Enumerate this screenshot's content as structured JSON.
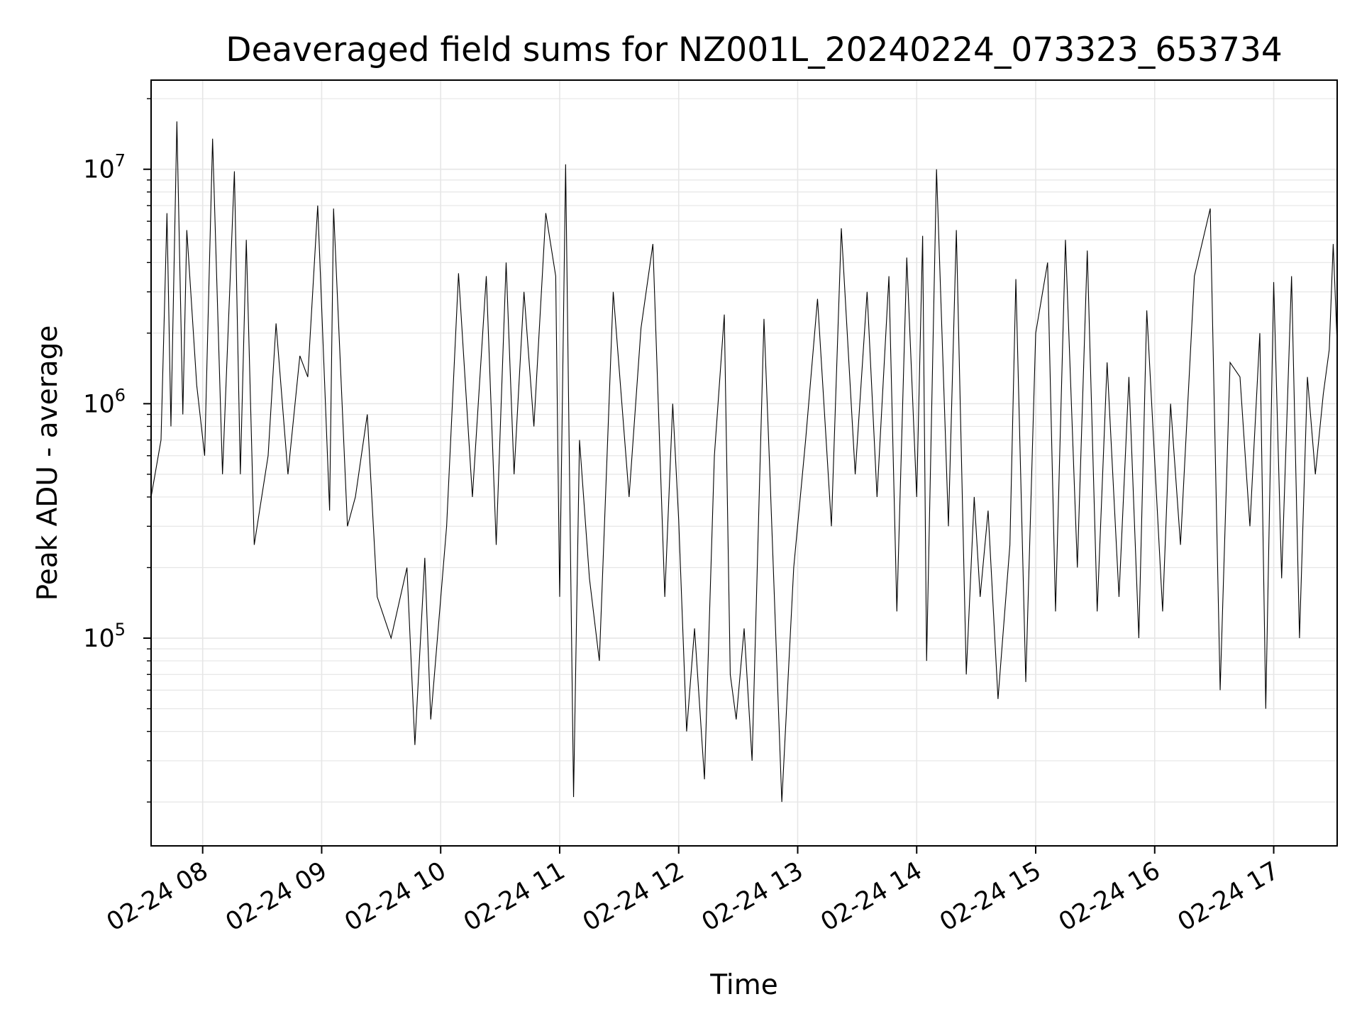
{
  "chart_data": {
    "type": "line",
    "title": "Deaveraged field sums for NZ001L_20240224_073323_653734",
    "xlabel": "Time",
    "ylabel": "Peak ADU - average",
    "yscale": "log",
    "ylim": [
      13000,
      24000000
    ],
    "xlim": [
      "2024-02-24 07:34",
      "2024-02-24 17:32"
    ],
    "grid": true,
    "x_tick_labels": [
      "02-24 08",
      "02-24 09",
      "02-24 10",
      "02-24 11",
      "02-24 12",
      "02-24 13",
      "02-24 14",
      "02-24 15",
      "02-24 16",
      "02-24 17"
    ],
    "y_tick_labels": [
      {
        "value": 100000,
        "base": "10",
        "exp": "5"
      },
      {
        "value": 1000000,
        "base": "10",
        "exp": "6"
      },
      {
        "value": 10000000,
        "base": "10",
        "exp": "7"
      }
    ],
    "line_color": "#000000",
    "grid_color": "#e6e6e6",
    "series": [
      {
        "x": [
          "2024-02-24 07:34",
          "2024-02-24 07:39",
          "2024-02-24 07:42",
          "2024-02-24 07:44",
          "2024-02-24 07:47",
          "2024-02-24 07:50",
          "2024-02-24 07:52",
          "2024-02-24 07:54",
          "2024-02-24 07:57",
          "2024-02-24 08:01",
          "2024-02-24 08:05",
          "2024-02-24 08:10",
          "2024-02-24 08:16",
          "2024-02-24 08:19",
          "2024-02-24 08:22",
          "2024-02-24 08:26",
          "2024-02-24 08:33",
          "2024-02-24 08:37",
          "2024-02-24 08:43",
          "2024-02-24 08:49",
          "2024-02-24 08:53",
          "2024-02-24 08:58",
          "2024-02-24 09:04",
          "2024-02-24 09:06",
          "2024-02-24 09:13",
          "2024-02-24 09:17",
          "2024-02-24 09:23",
          "2024-02-24 09:28",
          "2024-02-24 09:35",
          "2024-02-24 09:43",
          "2024-02-24 09:47",
          "2024-02-24 09:52",
          "2024-02-24 09:55",
          "2024-02-24 10:03",
          "2024-02-24 10:09",
          "2024-02-24 10:16",
          "2024-02-24 10:23",
          "2024-02-24 10:28",
          "2024-02-24 10:33",
          "2024-02-24 10:37",
          "2024-02-24 10:42",
          "2024-02-24 10:47",
          "2024-02-24 10:53",
          "2024-02-24 10:58",
          "2024-02-24 11:00",
          "2024-02-24 11:03",
          "2024-02-24 11:07",
          "2024-02-24 11:10",
          "2024-02-24 11:15",
          "2024-02-24 11:20",
          "2024-02-24 11:27",
          "2024-02-24 11:35",
          "2024-02-24 11:41",
          "2024-02-24 11:47",
          "2024-02-24 11:53",
          "2024-02-24 11:57",
          "2024-02-24 12:00",
          "2024-02-24 12:04",
          "2024-02-24 12:08",
          "2024-02-24 12:13",
          "2024-02-24 12:18",
          "2024-02-24 12:23",
          "2024-02-24 12:26",
          "2024-02-24 12:29",
          "2024-02-24 12:33",
          "2024-02-24 12:37",
          "2024-02-24 12:43",
          "2024-02-24 12:46",
          "2024-02-24 12:52",
          "2024-02-24 12:58",
          "2024-02-24 13:04",
          "2024-02-24 13:10",
          "2024-02-24 13:17",
          "2024-02-24 13:22",
          "2024-02-24 13:29",
          "2024-02-24 13:35",
          "2024-02-24 13:40",
          "2024-02-24 13:46",
          "2024-02-24 13:50",
          "2024-02-24 13:55",
          "2024-02-24 14:00",
          "2024-02-24 14:03",
          "2024-02-24 14:05",
          "2024-02-24 14:10",
          "2024-02-24 14:16",
          "2024-02-24 14:20",
          "2024-02-24 14:25",
          "2024-02-24 14:29",
          "2024-02-24 14:32",
          "2024-02-24 14:36",
          "2024-02-24 14:41",
          "2024-02-24 14:47",
          "2024-02-24 14:50",
          "2024-02-24 14:55",
          "2024-02-24 15:00",
          "2024-02-24 15:06",
          "2024-02-24 15:10",
          "2024-02-24 15:15",
          "2024-02-24 15:21",
          "2024-02-24 15:26",
          "2024-02-24 15:31",
          "2024-02-24 15:36",
          "2024-02-24 15:42",
          "2024-02-24 15:47",
          "2024-02-24 15:52",
          "2024-02-24 15:56",
          "2024-02-24 16:04",
          "2024-02-24 16:08",
          "2024-02-24 16:13",
          "2024-02-24 16:20",
          "2024-02-24 16:28",
          "2024-02-24 16:33",
          "2024-02-24 16:38",
          "2024-02-24 16:43",
          "2024-02-24 16:48",
          "2024-02-24 16:53",
          "2024-02-24 16:56",
          "2024-02-24 17:00",
          "2024-02-24 17:04",
          "2024-02-24 17:09",
          "2024-02-24 17:13",
          "2024-02-24 17:17",
          "2024-02-24 17:21",
          "2024-02-24 17:25",
          "2024-02-24 17:28",
          "2024-02-24 17:30",
          "2024-02-24 17:32"
        ],
        "values": [
          400000,
          700000,
          6500000,
          800000,
          16000000,
          900000,
          5500000,
          3000000,
          1200000,
          600000,
          13500000,
          500000,
          9800000,
          500000,
          5000000,
          250000,
          600000,
          2200000,
          500000,
          1600000,
          1300000,
          7000000,
          350000,
          6800000,
          300000,
          400000,
          900000,
          150000,
          100000,
          200000,
          35000,
          220000,
          45000,
          300000,
          3600000,
          400000,
          3500000,
          250000,
          4000000,
          500000,
          3000000,
          800000,
          6500000,
          3500000,
          150000,
          10500000,
          21000,
          700000,
          180000,
          80000,
          3000000,
          400000,
          2100000,
          4800000,
          150000,
          1000000,
          320000,
          40000,
          110000,
          25000,
          600000,
          2400000,
          70000,
          45000,
          110000,
          30000,
          2300000,
          500000,
          20000,
          200000,
          700000,
          2800000,
          300000,
          5600000,
          500000,
          3000000,
          400000,
          3500000,
          130000,
          4200000,
          400000,
          5200000,
          80000,
          10000000,
          300000,
          5500000,
          70000,
          400000,
          150000,
          350000,
          55000,
          250000,
          3400000,
          65000,
          2000000,
          4000000,
          130000,
          5000000,
          200000,
          4500000,
          130000,
          1500000,
          150000,
          1300000,
          100000,
          2500000,
          130000,
          1000000,
          250000,
          3500000,
          6800000,
          60000,
          1500000,
          1300000,
          300000,
          2000000,
          50000,
          3300000,
          180000,
          3500000,
          100000,
          1300000,
          500000,
          1100000,
          1700000,
          4800000,
          1800000
        ]
      }
    ]
  }
}
